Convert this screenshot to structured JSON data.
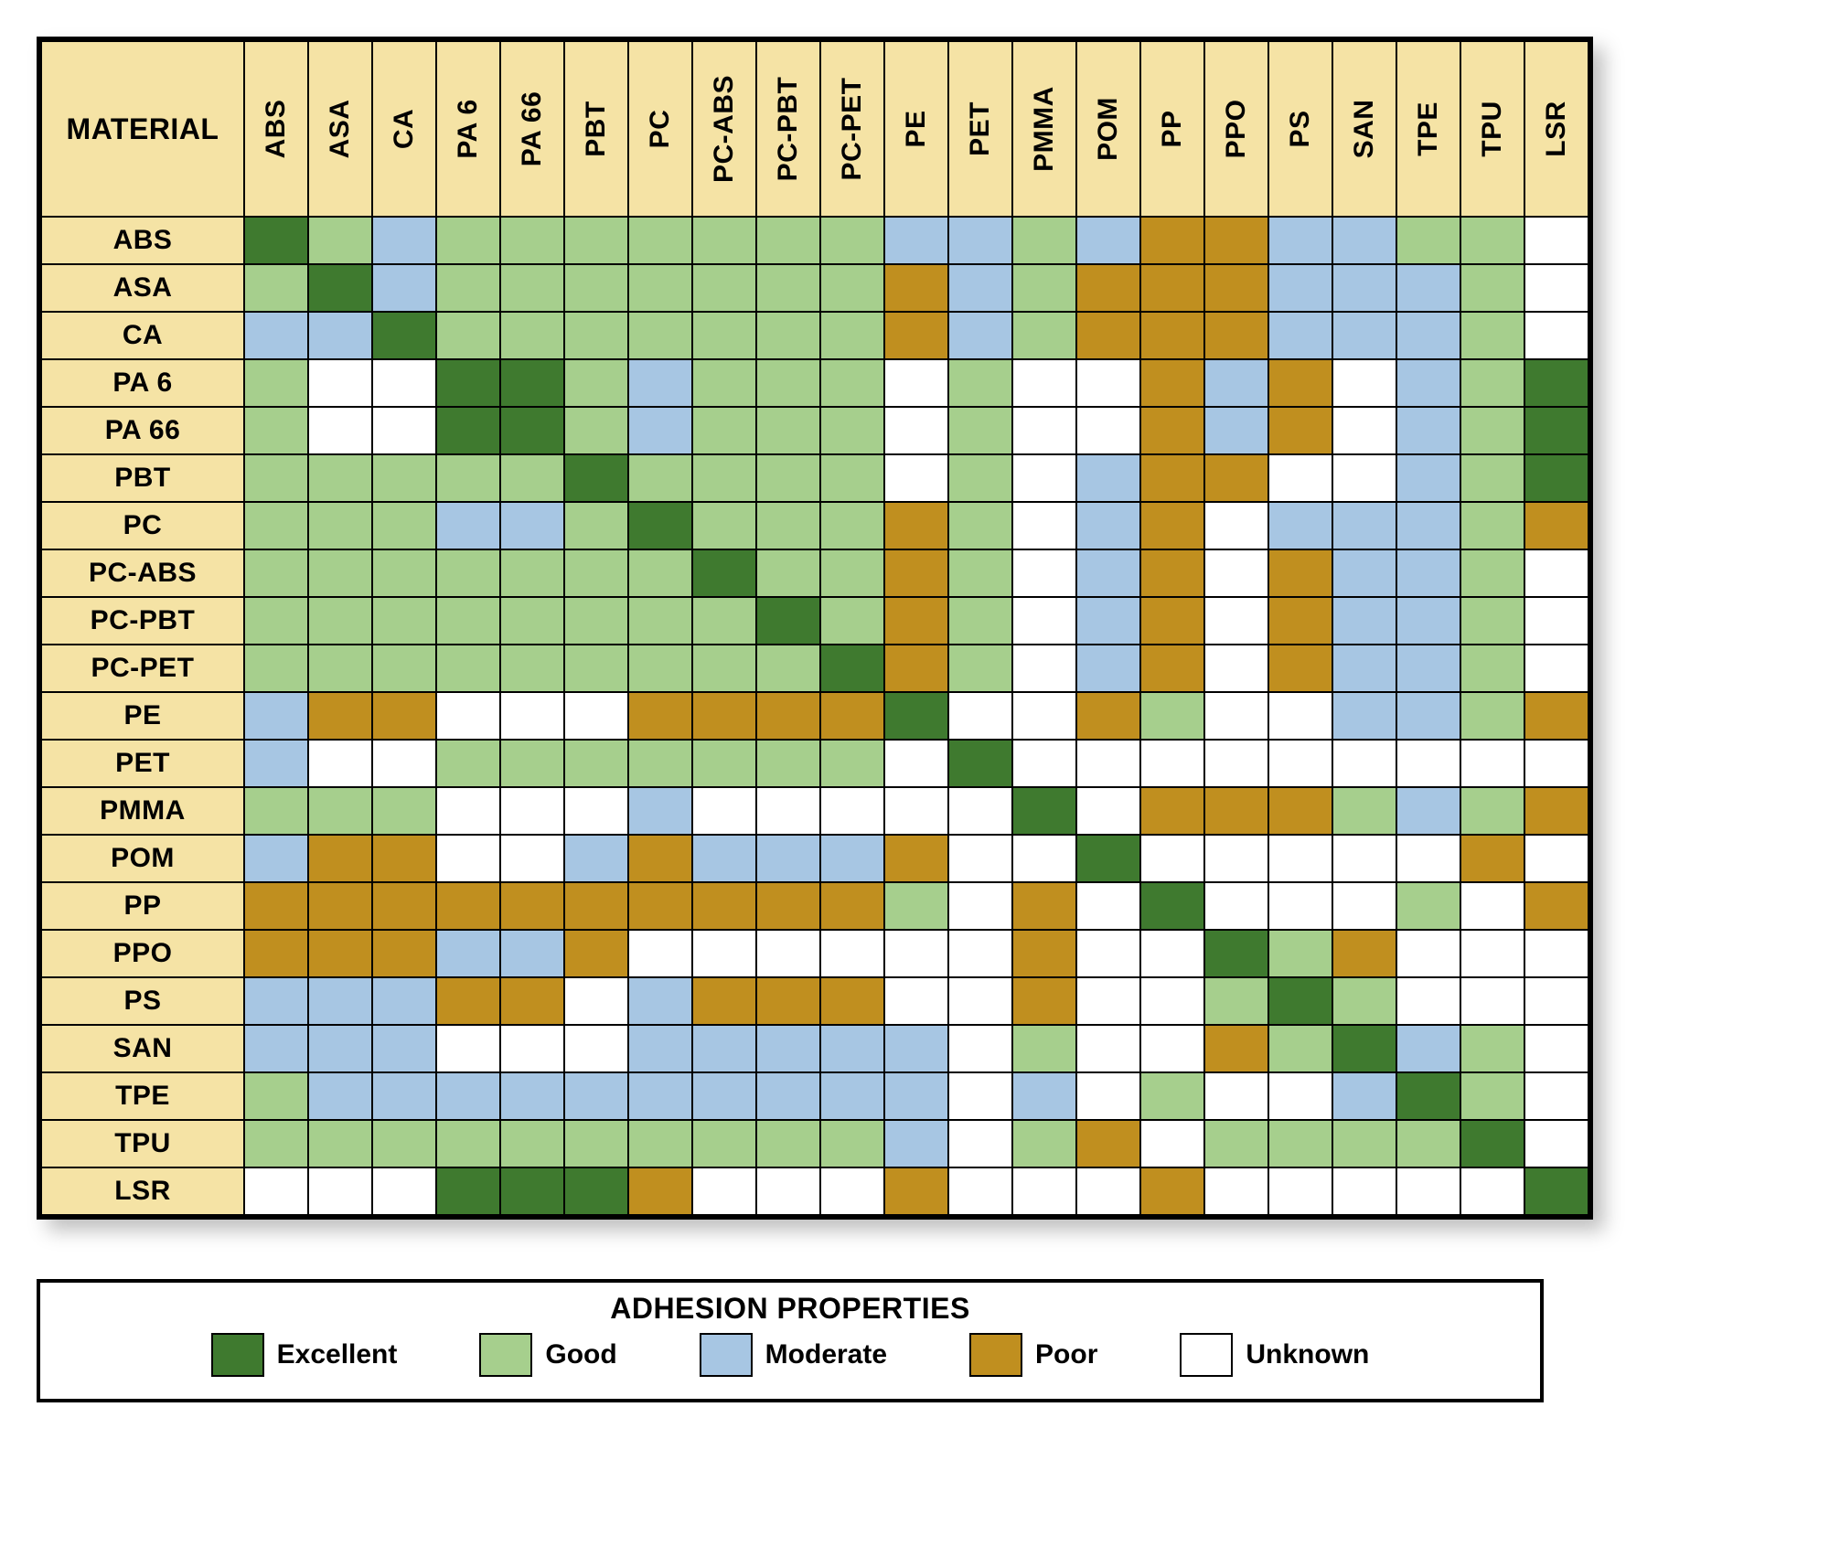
{
  "header_bg": "#f5e3a5",
  "corner_label": "MATERIAL",
  "materials": [
    "ABS",
    "ASA",
    "CA",
    "PA 6",
    "PA 66",
    "PBT",
    "PC",
    "PC-ABS",
    "PC-PBT",
    "PC-PET",
    "PE",
    "PET",
    "PMMA",
    "POM",
    "PP",
    "PPO",
    "PS",
    "SAN",
    "TPE",
    "TPU",
    "LSR"
  ],
  "legend": {
    "title": "ADHESION PROPERTIES",
    "items": [
      {
        "key": "E",
        "label": "Excellent",
        "color": "#3f7a2f"
      },
      {
        "key": "G",
        "label": "Good",
        "color": "#a6cf8d"
      },
      {
        "key": "M",
        "label": "Moderate",
        "color": "#a7c6e3"
      },
      {
        "key": "P",
        "label": "Poor",
        "color": "#c08f1f"
      },
      {
        "key": "U",
        "label": "Unknown",
        "color": "#ffffff"
      }
    ]
  },
  "grid": [
    [
      "E",
      "G",
      "M",
      "G",
      "G",
      "G",
      "G",
      "G",
      "G",
      "G",
      "M",
      "M",
      "G",
      "M",
      "P",
      "P",
      "M",
      "M",
      "G",
      "G",
      "U"
    ],
    [
      "G",
      "E",
      "M",
      "G",
      "G",
      "G",
      "G",
      "G",
      "G",
      "G",
      "P",
      "M",
      "G",
      "P",
      "P",
      "P",
      "M",
      "M",
      "M",
      "G",
      "U"
    ],
    [
      "M",
      "M",
      "E",
      "G",
      "G",
      "G",
      "G",
      "G",
      "G",
      "G",
      "P",
      "M",
      "G",
      "P",
      "P",
      "P",
      "M",
      "M",
      "M",
      "G",
      "U"
    ],
    [
      "G",
      "U",
      "U",
      "E",
      "E",
      "G",
      "M",
      "G",
      "G",
      "G",
      "U",
      "G",
      "U",
      "U",
      "P",
      "M",
      "P",
      "U",
      "M",
      "G",
      "E"
    ],
    [
      "G",
      "U",
      "U",
      "E",
      "E",
      "G",
      "M",
      "G",
      "G",
      "G",
      "U",
      "G",
      "U",
      "U",
      "P",
      "M",
      "P",
      "U",
      "M",
      "G",
      "E"
    ],
    [
      "G",
      "G",
      "G",
      "G",
      "G",
      "E",
      "G",
      "G",
      "G",
      "G",
      "U",
      "G",
      "U",
      "M",
      "P",
      "P",
      "U",
      "U",
      "M",
      "G",
      "E"
    ],
    [
      "G",
      "G",
      "G",
      "M",
      "M",
      "G",
      "E",
      "G",
      "G",
      "G",
      "P",
      "G",
      "U",
      "M",
      "P",
      "U",
      "M",
      "M",
      "M",
      "G",
      "P"
    ],
    [
      "G",
      "G",
      "G",
      "G",
      "G",
      "G",
      "G",
      "E",
      "G",
      "G",
      "P",
      "G",
      "U",
      "M",
      "P",
      "U",
      "P",
      "M",
      "M",
      "G",
      "U"
    ],
    [
      "G",
      "G",
      "G",
      "G",
      "G",
      "G",
      "G",
      "G",
      "E",
      "G",
      "P",
      "G",
      "U",
      "M",
      "P",
      "U",
      "P",
      "M",
      "M",
      "G",
      "U"
    ],
    [
      "G",
      "G",
      "G",
      "G",
      "G",
      "G",
      "G",
      "G",
      "G",
      "E",
      "P",
      "G",
      "U",
      "M",
      "P",
      "U",
      "P",
      "M",
      "M",
      "G",
      "U"
    ],
    [
      "M",
      "P",
      "P",
      "U",
      "U",
      "U",
      "P",
      "P",
      "P",
      "P",
      "E",
      "U",
      "U",
      "P",
      "G",
      "U",
      "U",
      "M",
      "M",
      "G",
      "P"
    ],
    [
      "M",
      "U",
      "U",
      "G",
      "G",
      "G",
      "G",
      "G",
      "G",
      "G",
      "U",
      "E",
      "U",
      "U",
      "U",
      "U",
      "U",
      "U",
      "U",
      "U",
      "U"
    ],
    [
      "G",
      "G",
      "G",
      "U",
      "U",
      "U",
      "M",
      "U",
      "U",
      "U",
      "U",
      "U",
      "E",
      "U",
      "P",
      "P",
      "P",
      "G",
      "M",
      "G",
      "P"
    ],
    [
      "M",
      "P",
      "P",
      "U",
      "U",
      "M",
      "P",
      "M",
      "M",
      "M",
      "P",
      "U",
      "U",
      "E",
      "U",
      "U",
      "U",
      "U",
      "U",
      "P",
      "U"
    ],
    [
      "P",
      "P",
      "P",
      "P",
      "P",
      "P",
      "P",
      "P",
      "P",
      "P",
      "G",
      "U",
      "P",
      "U",
      "E",
      "U",
      "U",
      "U",
      "G",
      "U",
      "P"
    ],
    [
      "P",
      "P",
      "P",
      "M",
      "M",
      "P",
      "U",
      "U",
      "U",
      "U",
      "U",
      "U",
      "P",
      "U",
      "U",
      "E",
      "G",
      "P",
      "U",
      "U",
      "U"
    ],
    [
      "M",
      "M",
      "M",
      "P",
      "P",
      "U",
      "M",
      "P",
      "P",
      "P",
      "U",
      "U",
      "P",
      "U",
      "U",
      "G",
      "E",
      "G",
      "U",
      "U",
      "U"
    ],
    [
      "M",
      "M",
      "M",
      "U",
      "U",
      "U",
      "M",
      "M",
      "M",
      "M",
      "M",
      "U",
      "G",
      "U",
      "U",
      "P",
      "G",
      "E",
      "M",
      "G",
      "U"
    ],
    [
      "G",
      "M",
      "M",
      "M",
      "M",
      "M",
      "M",
      "M",
      "M",
      "M",
      "M",
      "U",
      "M",
      "U",
      "G",
      "U",
      "U",
      "M",
      "E",
      "G",
      "U"
    ],
    [
      "G",
      "G",
      "G",
      "G",
      "G",
      "G",
      "G",
      "G",
      "G",
      "G",
      "M",
      "U",
      "G",
      "P",
      "U",
      "G",
      "G",
      "G",
      "G",
      "E",
      "U"
    ],
    [
      "U",
      "U",
      "U",
      "E",
      "E",
      "E",
      "P",
      "U",
      "U",
      "U",
      "P",
      "U",
      "U",
      "U",
      "P",
      "U",
      "U",
      "U",
      "U",
      "U",
      "E"
    ]
  ]
}
